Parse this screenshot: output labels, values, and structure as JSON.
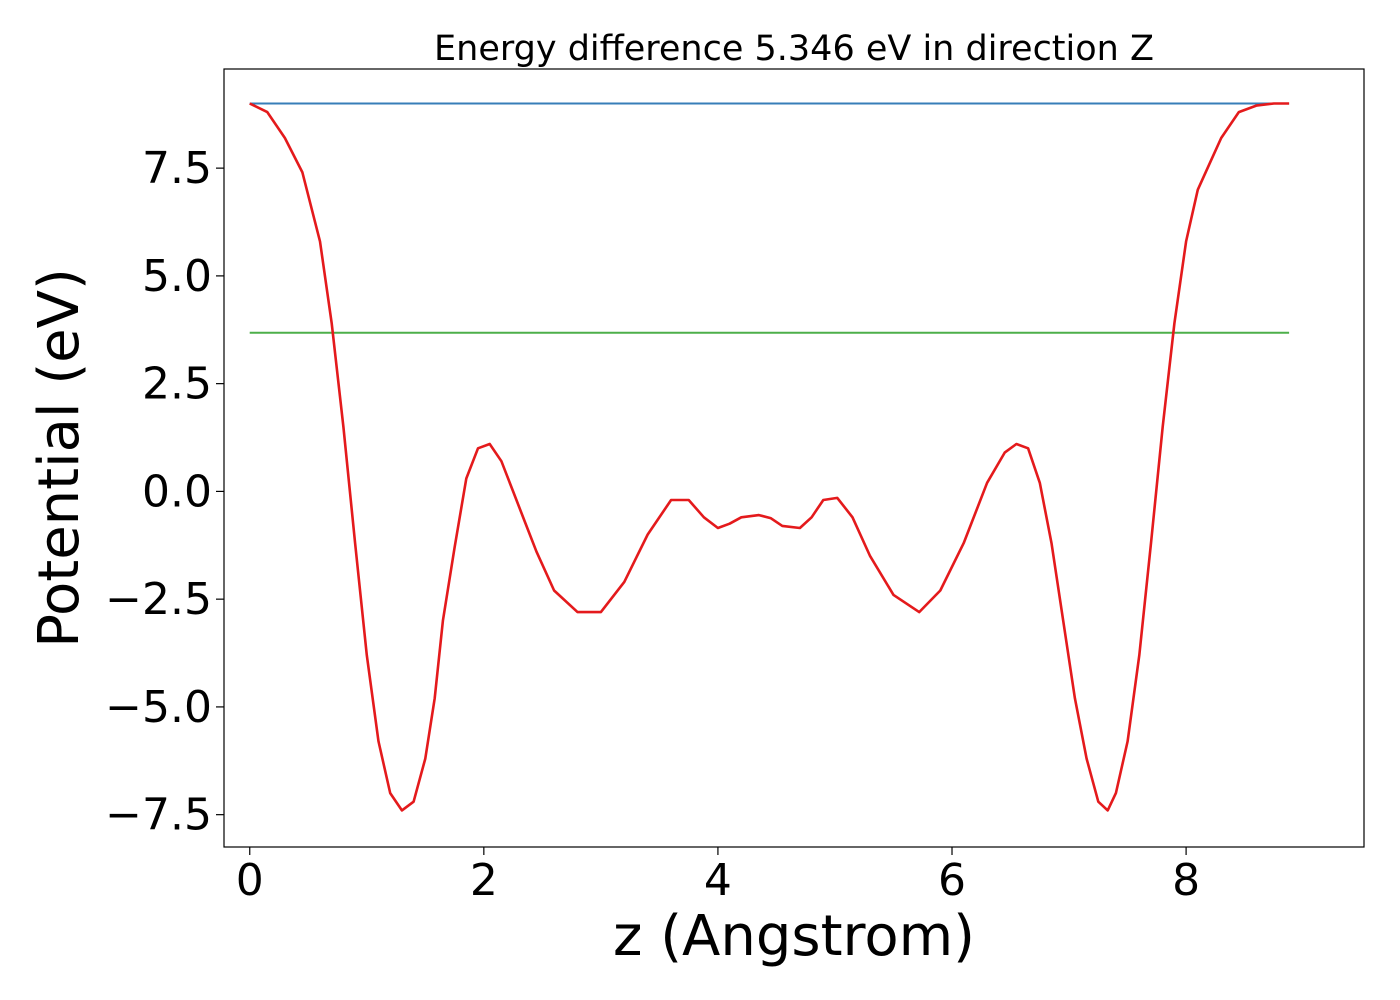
{
  "chart_data": {
    "type": "line",
    "title": "Energy difference 5.346 eV in direction Z",
    "xlabel": "z (Angstrom)",
    "ylabel": "Potential (eV)",
    "xlim": [
      -0.22,
      9.52
    ],
    "ylim": [
      -8.25,
      9.8
    ],
    "xticks": [
      0,
      2,
      4,
      6,
      8
    ],
    "yticks": [
      7.5,
      5.0,
      2.5,
      0.0,
      -2.5,
      -5.0,
      -7.5
    ],
    "ytick_labels": [
      "7.5",
      "5.0",
      "2.5",
      "0.0",
      "−2.5",
      "−5.0",
      "−7.5"
    ],
    "grid": false,
    "series": [
      {
        "color": "#e41a1c",
        "x": [
          0.0,
          0.15,
          0.3,
          0.45,
          0.6,
          0.7,
          0.8,
          0.9,
          1.0,
          1.1,
          1.2,
          1.3,
          1.4,
          1.5,
          1.58,
          1.65,
          1.75,
          1.85,
          1.95,
          2.05,
          2.15,
          2.25,
          2.35,
          2.45,
          2.6,
          2.8,
          3.0,
          3.2,
          3.4,
          3.6,
          3.75,
          3.88,
          4.0,
          4.1,
          4.2,
          4.35,
          4.45,
          4.55,
          4.7,
          4.8,
          4.9,
          5.02,
          5.15,
          5.3,
          5.5,
          5.72,
          5.9,
          6.1,
          6.3,
          6.45,
          6.55,
          6.65,
          6.75,
          6.85,
          6.95,
          7.05,
          7.15,
          7.25,
          7.33,
          7.4,
          7.5,
          7.6,
          7.7,
          7.8,
          7.9,
          8.0,
          8.1,
          8.2,
          8.3,
          8.45,
          8.6,
          8.75,
          8.88
        ],
        "y": [
          9.0,
          8.8,
          8.2,
          7.4,
          5.8,
          3.9,
          1.5,
          -1.2,
          -3.8,
          -5.8,
          -7.0,
          -7.4,
          -7.2,
          -6.2,
          -4.8,
          -3.0,
          -1.3,
          0.3,
          1.0,
          1.1,
          0.7,
          0.0,
          -0.7,
          -1.4,
          -2.3,
          -2.8,
          -2.8,
          -2.1,
          -1.0,
          -0.2,
          -0.2,
          -0.6,
          -0.85,
          -0.75,
          -0.6,
          -0.55,
          -0.62,
          -0.8,
          -0.85,
          -0.6,
          -0.2,
          -0.15,
          -0.6,
          -1.5,
          -2.4,
          -2.8,
          -2.3,
          -1.2,
          0.2,
          0.9,
          1.1,
          1.0,
          0.2,
          -1.2,
          -3.0,
          -4.8,
          -6.2,
          -7.2,
          -7.4,
          -7.0,
          -5.8,
          -3.8,
          -1.2,
          1.5,
          3.9,
          5.8,
          7.0,
          7.6,
          8.2,
          8.8,
          8.95,
          9.0,
          9.0
        ]
      },
      {
        "color": "#377eb8",
        "x": [
          0.0,
          8.88
        ],
        "y": [
          9.0,
          9.0
        ]
      },
      {
        "color": "#4daf4a",
        "x": [
          0.0,
          8.88
        ],
        "y": [
          3.68,
          3.68
        ]
      }
    ]
  }
}
